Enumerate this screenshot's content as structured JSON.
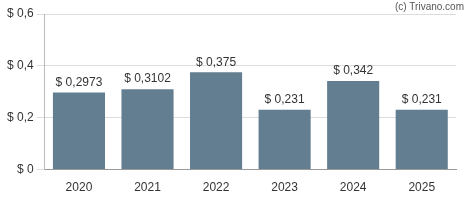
{
  "chart_data": {
    "type": "bar",
    "categories": [
      "2020",
      "2021",
      "2022",
      "2023",
      "2024",
      "2025"
    ],
    "values": [
      0.2973,
      0.3102,
      0.375,
      0.231,
      0.342,
      0.231
    ],
    "value_labels": [
      "$ 0,2973",
      "$ 0,3102",
      "$ 0,375",
      "$ 0,231",
      "$ 0,342",
      "$ 0,231"
    ],
    "color": "#637e91",
    "ylim": [
      0,
      0.6
    ],
    "yticks": [
      {
        "value": 0,
        "label": "$ 0"
      },
      {
        "value": 0.2,
        "label": "$ 0,2"
      },
      {
        "value": 0.4,
        "label": "$ 0,4"
      },
      {
        "value": 0.6,
        "label": "$ 0,6"
      }
    ],
    "grid": true,
    "data_labels": true,
    "annotations": [
      "(c) Trivano.com"
    ]
  }
}
